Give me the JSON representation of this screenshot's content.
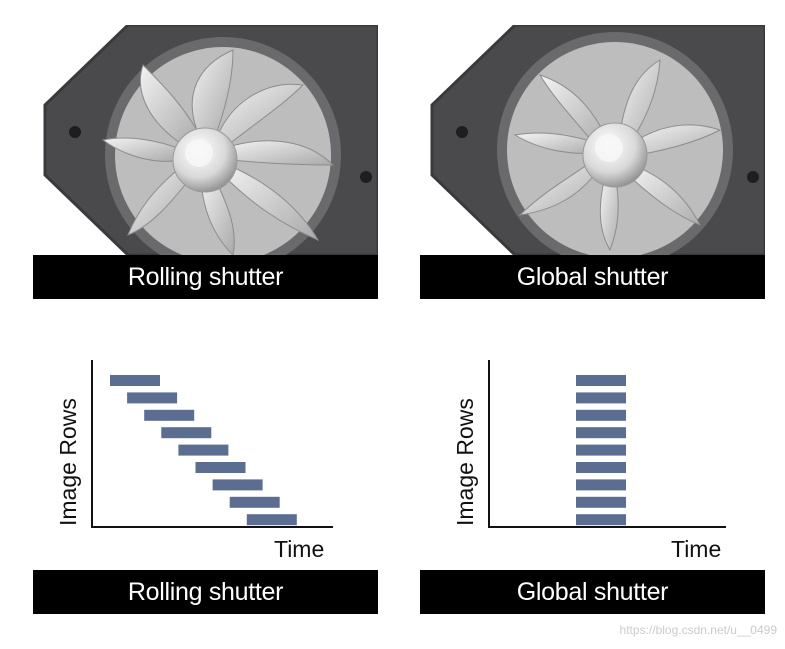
{
  "captions": {
    "rolling_top": "Rolling shutter",
    "global_top": "Global shutter",
    "rolling_bottom": "Rolling shutter",
    "global_bottom": "Global shutter"
  },
  "axes": {
    "rolling": {
      "ylabel": "Image Rows",
      "xlabel": "Time"
    },
    "global": {
      "ylabel": "Image Rows",
      "xlabel": "Time"
    }
  },
  "diagrams": {
    "rolling": {
      "rows": 9,
      "exposure": "staggered"
    },
    "global": {
      "rows": 9,
      "exposure": "simultaneous"
    }
  },
  "colors": {
    "bar": "#5b6e92",
    "caption_bg": "#000000",
    "caption_text": "#ffffff",
    "axis": "#111111"
  },
  "watermark": "https://blog.csdn.net/u__0499"
}
